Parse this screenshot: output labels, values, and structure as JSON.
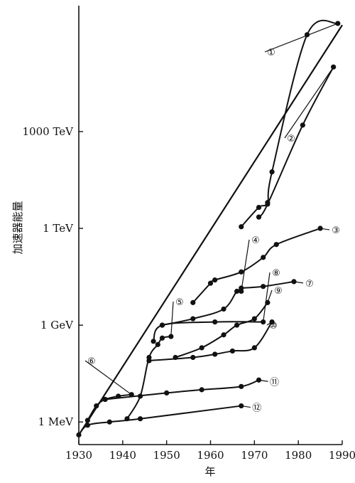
{
  "chart_data": {
    "type": "line",
    "title": "",
    "xlabel": "年",
    "ylabel": "加速器能量",
    "x_ticks": [
      "1930",
      "1940",
      "1950",
      "1960",
      "1970",
      "1980",
      "1990"
    ],
    "y_ticks": [
      "1 MeV",
      "1 GeV",
      "1 TeV",
      "1000 TeV"
    ],
    "y_scale": "log",
    "xlim": [
      1930,
      1990
    ],
    "ylim_log10_eV": [
      5.3,
      18.9
    ],
    "grid": false,
    "trend_line": {
      "x": [
        1930,
        1990
      ],
      "log10_eV": [
        5.6,
        18.3
      ]
    },
    "series": [
      {
        "name": "①",
        "x": [
          1967,
          1971,
          1973,
          1974,
          1982,
          1989
        ],
        "log10_eV": [
          12.05,
          12.65,
          12.8,
          13.75,
          18.0,
          18.35
        ]
      },
      {
        "name": "②",
        "x": [
          1971,
          1973,
          1981,
          1988
        ],
        "log10_eV": [
          12.35,
          12.75,
          15.2,
          17.0
        ]
      },
      {
        "name": "③",
        "x": [
          1956,
          1960,
          1961,
          1967,
          1972,
          1975,
          1985
        ],
        "log10_eV": [
          9.7,
          10.3,
          10.4,
          10.65,
          11.1,
          11.5,
          12.0
        ]
      },
      {
        "name": "④",
        "x": [
          1949,
          1956,
          1963,
          1966,
          1967
        ],
        "log10_eV": [
          9.0,
          9.2,
          9.5,
          10.05,
          10.05
        ]
      },
      {
        "name": "⑦",
        "x": [
          1967,
          1972,
          1979
        ],
        "log10_eV": [
          10.15,
          10.2,
          10.35
        ]
      },
      {
        "name": "⑧",
        "x": [
          1947,
          1949,
          1961,
          1972
        ],
        "log10_eV": [
          8.5,
          9.0,
          9.1,
          9.1
        ]
      },
      {
        "name": "⑨",
        "x": [
          1952,
          1958,
          1963,
          1966,
          1970,
          1973
        ],
        "log10_eV": [
          8.0,
          8.3,
          8.7,
          9.0,
          9.2,
          9.7
        ]
      },
      {
        "name": "⑩",
        "x": [
          1946,
          1956,
          1961,
          1965,
          1970,
          1974
        ],
        "log10_eV": [
          7.9,
          8.0,
          8.1,
          8.2,
          8.3,
          9.1
        ]
      },
      {
        "name": "⑪",
        "x": [
          1936,
          1950,
          1958,
          1967,
          1971
        ],
        "log10_eV": [
          6.7,
          6.9,
          7.0,
          7.1,
          7.3
        ]
      },
      {
        "name": "⑫",
        "x": [
          1930,
          1932,
          1937,
          1944,
          1967
        ],
        "log10_eV": [
          5.6,
          5.9,
          6.0,
          6.1,
          6.5
        ]
      },
      {
        "name": "⑥",
        "x": [
          1932,
          1934,
          1936,
          1939,
          1942
        ],
        "log10_eV": [
          6.05,
          6.5,
          6.7,
          6.8,
          6.85
        ]
      },
      {
        "name": "⑤",
        "x": [
          1941,
          1944,
          1946,
          1948,
          1949,
          1951
        ],
        "log10_eV": [
          6.1,
          6.8,
          8.0,
          8.4,
          8.6,
          8.65
        ]
      }
    ]
  }
}
